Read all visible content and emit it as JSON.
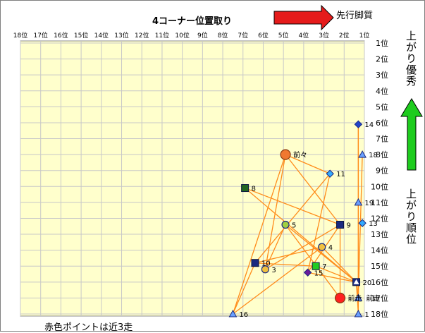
{
  "header": {
    "title": "4コーナー位置取り",
    "direction_label": "先行脚質"
  },
  "side_labels": {
    "upper": "上がり優秀",
    "lower": "上がり順位"
  },
  "footer": {
    "note": "赤色ポイントは近3走"
  },
  "colors": {
    "plot_bg": "#ffffcc",
    "grid": "#c8c8c8",
    "connector": "#ff8c1a",
    "arrow_red": "#e51b1b",
    "arrow_green": "#1ecc1e",
    "red_point": "#ff2020",
    "orange_point": "#f07830"
  },
  "chart_data": {
    "type": "scatter",
    "title": "4コーナー位置取り",
    "xlabel": "4コーナー位置取り",
    "ylabel": "上がり順位",
    "x_axis": {
      "range": [
        18,
        1
      ],
      "ticks": [
        "18位",
        "17位",
        "16位",
        "15位",
        "14位",
        "13位",
        "12位",
        "11位",
        "10位",
        "9位",
        "8位",
        "7位",
        "6位",
        "5位",
        "4位",
        "3位",
        "2位",
        "1位"
      ]
    },
    "y_axis": {
      "range": [
        1,
        18
      ],
      "ticks": [
        "1位",
        "2位",
        "3位",
        "4位",
        "5位",
        "6位",
        "7位",
        "8位",
        "9位",
        "10位",
        "11位",
        "12位",
        "13位",
        "14位",
        "15位",
        "16位",
        "17位",
        "18位"
      ]
    },
    "grid": true,
    "points": [
      {
        "label": "前々",
        "x": 4.9,
        "y": 8.0,
        "shape": "circle",
        "color": "#f07830",
        "recent": true
      },
      {
        "label": "前走",
        "x": 2.2,
        "y": 17.0,
        "shape": "circle",
        "color": "#ff2020",
        "recent": true
      },
      {
        "label": "前走",
        "x": 1.3,
        "y": 17.0,
        "shape": "triangle",
        "color": "#6aa0ff",
        "recent": true
      },
      {
        "label": "1",
        "x": 1.3,
        "y": 18.0,
        "shape": "triangle",
        "color": "#6aa0ff"
      },
      {
        "label": "3",
        "x": 5.9,
        "y": 15.2,
        "shape": "circle",
        "color": "#f0c040"
      },
      {
        "label": "4",
        "x": 3.1,
        "y": 13.8,
        "shape": "circle",
        "color": "#f0c040"
      },
      {
        "label": "5",
        "x": 4.9,
        "y": 12.4,
        "shape": "circle",
        "color": "#a0d040"
      },
      {
        "label": "7",
        "x": 3.4,
        "y": 15.0,
        "shape": "square",
        "color": "#22cc22"
      },
      {
        "label": "8",
        "x": 6.9,
        "y": 10.1,
        "shape": "square",
        "color": "#226622"
      },
      {
        "label": "9",
        "x": 2.2,
        "y": 12.4,
        "shape": "square",
        "color": "#1a2a80"
      },
      {
        "label": "10",
        "x": 6.4,
        "y": 14.8,
        "shape": "square",
        "color": "#1a2a80"
      },
      {
        "label": "11",
        "x": 2.7,
        "y": 9.2,
        "shape": "diamond",
        "color": "#33aaff"
      },
      {
        "label": "13",
        "x": 1.1,
        "y": 12.3,
        "shape": "diamond",
        "color": "#33aaff"
      },
      {
        "label": "14",
        "x": 1.3,
        "y": 6.1,
        "shape": "diamond",
        "color": "#2244cc"
      },
      {
        "label": "15",
        "x": 3.8,
        "y": 15.4,
        "shape": "diamond",
        "color": "#6a1a9a"
      },
      {
        "label": "16",
        "x": 7.5,
        "y": 18.0,
        "shape": "triangle",
        "color": "#6aa0ff"
      },
      {
        "label": "18",
        "x": 1.1,
        "y": 8.0,
        "shape": "triangle",
        "color": "#6aa0ff"
      },
      {
        "label": "19",
        "x": 1.3,
        "y": 11.0,
        "shape": "triangle",
        "color": "#6aa0ff"
      },
      {
        "label": "20",
        "x": 1.4,
        "y": 16.0,
        "shape": "square-tri",
        "color": "#1a2a80"
      }
    ],
    "connections": [
      {
        "from": "前々",
        "to": "11"
      },
      {
        "from": "前々",
        "to": "3"
      },
      {
        "from": "前々",
        "to": "16"
      },
      {
        "from": "前々",
        "to": "9"
      },
      {
        "from": "11",
        "to": "10"
      },
      {
        "from": "11",
        "to": "15"
      },
      {
        "from": "10",
        "to": "7"
      },
      {
        "from": "10",
        "to": "4"
      },
      {
        "from": "10",
        "to": "16"
      },
      {
        "from": "8",
        "to": "9"
      },
      {
        "from": "8",
        "to": "20"
      },
      {
        "from": "3",
        "to": "5"
      },
      {
        "from": "3",
        "to": "9"
      },
      {
        "from": "5",
        "to": "20"
      },
      {
        "from": "5",
        "to": "前走"
      },
      {
        "from": "4",
        "to": "16"
      },
      {
        "from": "15",
        "to": "9"
      },
      {
        "from": "7",
        "to": "20"
      },
      {
        "from": "9",
        "to": "前走"
      },
      {
        "from": "14",
        "to": "前走b"
      },
      {
        "from": "14",
        "to": "1"
      },
      {
        "from": "18",
        "to": "前走b"
      },
      {
        "from": "20",
        "to": "1"
      },
      {
        "from": "20",
        "to": "前走b"
      },
      {
        "from": "4",
        "to": "20"
      },
      {
        "from": "15",
        "to": "20"
      }
    ],
    "legend": "none"
  }
}
